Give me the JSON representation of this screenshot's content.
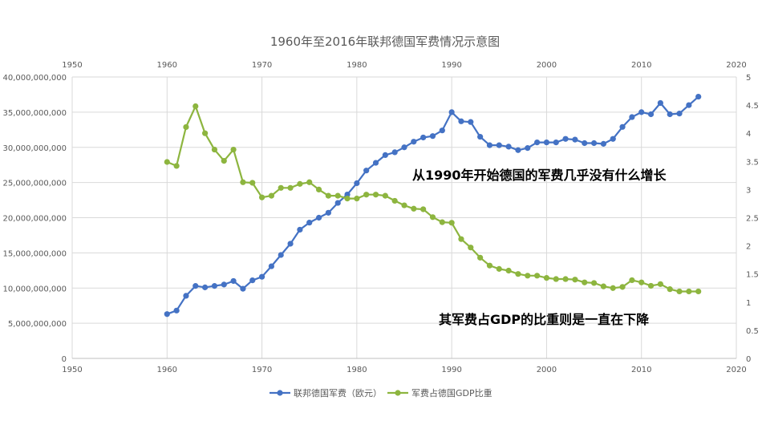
{
  "chart_data": {
    "type": "line",
    "title": "1960年至2016年联邦德国军费情况示意图",
    "xlim": [
      1950,
      2020
    ],
    "x_ticks": [
      "1950",
      "1960",
      "1970",
      "1980",
      "1990",
      "2000",
      "2010",
      "2020"
    ],
    "y_left": {
      "lim": [
        0,
        40000000000
      ],
      "ticks": [
        "0",
        "5,000,000,000",
        "10,000,000,000",
        "15,000,000,000",
        "20,000,000,000",
        "25,000,000,000",
        "30,000,000,000",
        "35,000,000,000",
        "40,000,000,000"
      ]
    },
    "y_right": {
      "lim": [
        0,
        5
      ],
      "ticks": [
        "0",
        "0.5",
        "1",
        "1.5",
        "2",
        "2.5",
        "3",
        "3.5",
        "4",
        "4.5",
        "5"
      ]
    },
    "grid": true,
    "legend_position": "bottom",
    "series": [
      {
        "name": "联邦德国军费（欧元）",
        "axis": "left",
        "color": "#4472c4",
        "x": [
          1960,
          1961,
          1962,
          1963,
          1964,
          1965,
          1966,
          1967,
          1968,
          1969,
          1970,
          1971,
          1972,
          1973,
          1974,
          1975,
          1976,
          1977,
          1978,
          1979,
          1980,
          1981,
          1982,
          1983,
          1984,
          1985,
          1986,
          1987,
          1988,
          1989,
          1990,
          1991,
          1992,
          1993,
          1994,
          1995,
          1996,
          1997,
          1998,
          1999,
          2000,
          2001,
          2002,
          2003,
          2004,
          2005,
          2006,
          2007,
          2008,
          2009,
          2010,
          2011,
          2012,
          2013,
          2014,
          2015,
          2016
        ],
        "values": [
          6300000000,
          6800000000,
          8900000000,
          10300000000,
          10100000000,
          10300000000,
          10500000000,
          11000000000,
          9900000000,
          11100000000,
          11600000000,
          13100000000,
          14700000000,
          16300000000,
          18300000000,
          19300000000,
          20000000000,
          20700000000,
          22100000000,
          23300000000,
          24900000000,
          26700000000,
          27800000000,
          28900000000,
          29300000000,
          30000000000,
          30800000000,
          31400000000,
          31600000000,
          32400000000,
          35000000000,
          33700000000,
          33600000000,
          31500000000,
          30300000000,
          30300000000,
          30100000000,
          29600000000,
          29900000000,
          30700000000,
          30700000000,
          30700000000,
          31200000000,
          31100000000,
          30600000000,
          30600000000,
          30500000000,
          31200000000,
          32900000000,
          34300000000,
          35000000000,
          34700000000,
          36300000000,
          34700000000,
          34800000000,
          36000000000,
          37200000000
        ]
      },
      {
        "name": "军费占德国GDP比重",
        "axis": "right",
        "color": "#8db53f",
        "x": [
          1960,
          1961,
          1962,
          1963,
          1964,
          1965,
          1966,
          1967,
          1968,
          1969,
          1970,
          1971,
          1972,
          1973,
          1974,
          1975,
          1976,
          1977,
          1978,
          1979,
          1980,
          1981,
          1982,
          1983,
          1984,
          1985,
          1986,
          1987,
          1988,
          1989,
          1990,
          1991,
          1992,
          1993,
          1994,
          1995,
          1996,
          1997,
          1998,
          1999,
          2000,
          2001,
          2002,
          2003,
          2004,
          2005,
          2006,
          2007,
          2008,
          2009,
          2010,
          2011,
          2012,
          2013,
          2014,
          2015,
          2016
        ],
        "values": [
          3.49,
          3.42,
          4.11,
          4.48,
          4.0,
          3.71,
          3.51,
          3.71,
          3.13,
          3.12,
          2.86,
          2.89,
          3.03,
          3.03,
          3.1,
          3.13,
          3.0,
          2.89,
          2.89,
          2.84,
          2.84,
          2.91,
          2.91,
          2.89,
          2.8,
          2.72,
          2.66,
          2.65,
          2.51,
          2.42,
          2.41,
          2.12,
          1.97,
          1.79,
          1.65,
          1.59,
          1.56,
          1.5,
          1.47,
          1.47,
          1.43,
          1.41,
          1.41,
          1.4,
          1.35,
          1.34,
          1.28,
          1.25,
          1.27,
          1.39,
          1.35,
          1.29,
          1.32,
          1.23,
          1.19,
          1.19,
          1.19
        ]
      }
    ],
    "annotations": [
      "从1990年开始德国的军费几乎没有什么增长",
      "其军费占GDP的比重则是一直在下降"
    ]
  }
}
